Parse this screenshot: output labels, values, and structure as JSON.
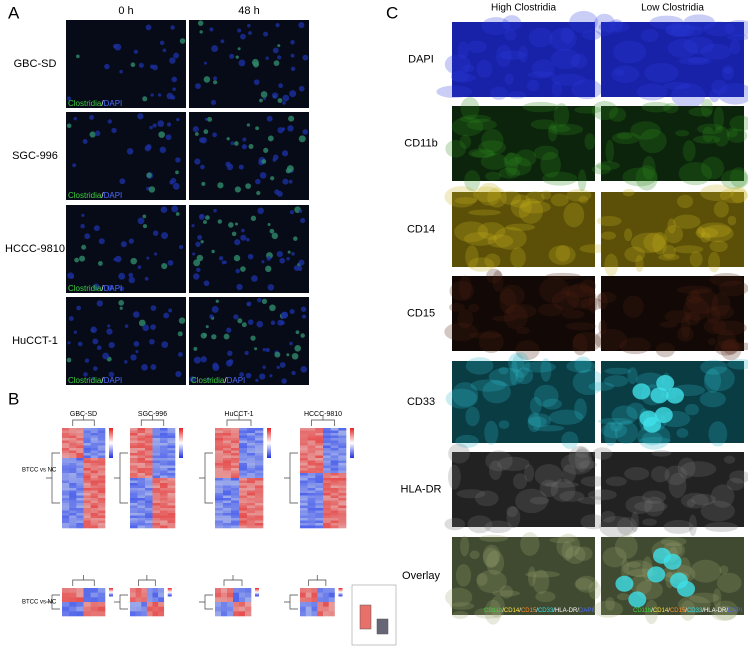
{
  "panel_a": {
    "label": "A",
    "columns": [
      "0 h",
      "48 h"
    ],
    "rows": [
      "GBC-SD",
      "SGC-996",
      "HCCC-9810",
      "HuCCT-1"
    ],
    "caption": {
      "marker": "Clostridia",
      "separator": "/",
      "stain": "DAPI"
    }
  },
  "panel_b": {
    "label": "B",
    "heatmap_titles": [
      "GBC-SD",
      "SGC-996",
      "HuCCT-1",
      "HCCC-9810"
    ],
    "comparison_labels": [
      "BTCC vs NC",
      "BTCC vs NC"
    ]
  },
  "panel_c": {
    "label": "C",
    "columns": [
      "High Clostridia",
      "Low Clostridia"
    ],
    "rows": [
      "DAPI",
      "CD11b",
      "CD14",
      "CD15",
      "CD33",
      "HLA-DR",
      "Overlay"
    ],
    "overlay_caption": [
      "CD11b",
      "/",
      "CD14",
      "/",
      "CD15",
      "/",
      "CD33",
      "/",
      "HLA-DR",
      "/",
      "DAPI"
    ]
  }
}
